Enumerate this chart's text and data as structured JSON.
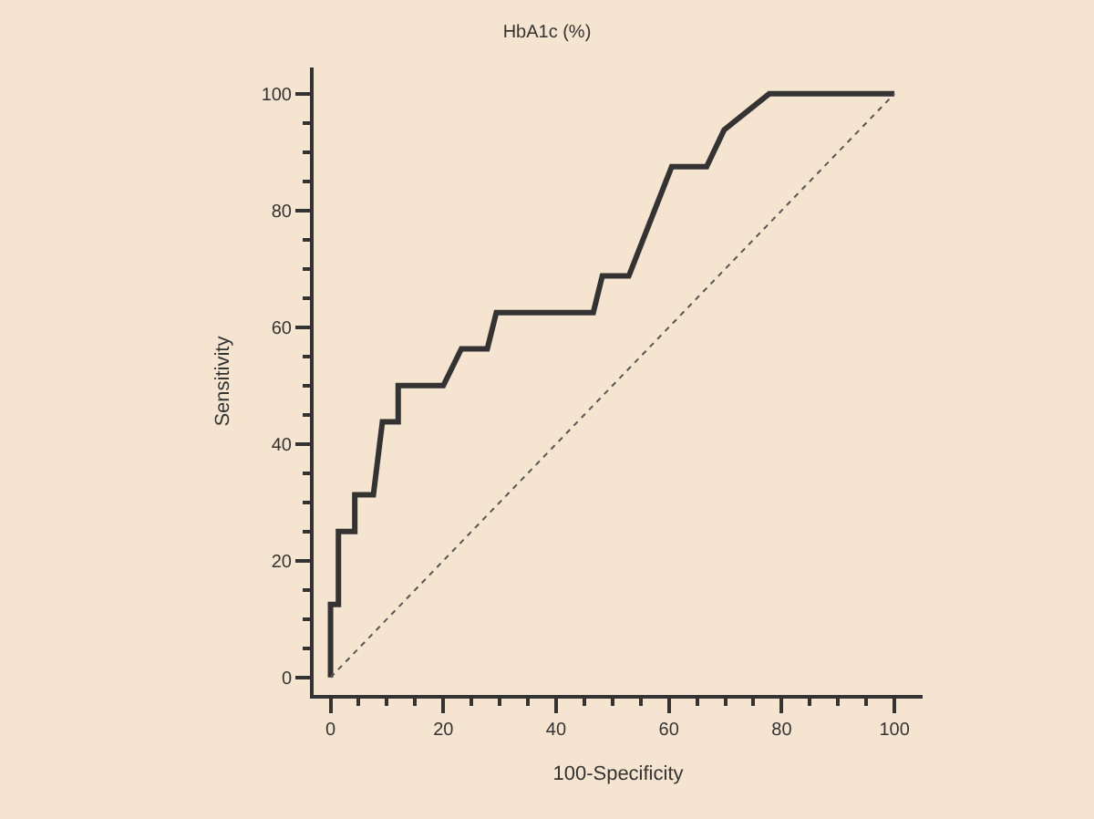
{
  "chart_data": {
    "type": "line",
    "title": "HbA1c (%)",
    "xlabel": "100-Specificity",
    "ylabel": "Sensitivity",
    "series": [
      {
        "color": "#333333",
        "line_style": "solid",
        "x": [
          0,
          0,
          1.4,
          1.4,
          4.3,
          4.3,
          7.6,
          9.2,
          12,
          12,
          20,
          23.2,
          27.8,
          29.4,
          46.6,
          48.2,
          52.9,
          60.5,
          66.7,
          69.8,
          77.8,
          100
        ],
        "values": [
          0,
          12.5,
          12.5,
          25,
          25,
          31.3,
          31.3,
          43.8,
          43.8,
          50,
          50,
          56.3,
          56.3,
          62.5,
          62.5,
          68.8,
          68.8,
          87.5,
          87.5,
          93.8,
          100,
          100
        ]
      },
      {
        "color": "#555555",
        "line_style": "dotted",
        "x": [
          0,
          100
        ],
        "values": [
          0,
          100
        ]
      }
    ],
    "xlim": [
      -3,
      105
    ],
    "ylim": [
      -3,
      104.5
    ],
    "xticks": [
      0,
      {
        "value": 5,
        "label": null
      },
      {
        "value": 10,
        "label": null
      },
      {
        "value": 15,
        "label": null
      },
      20,
      {
        "value": 25,
        "label": null
      },
      {
        "value": 30,
        "label": null
      },
      {
        "value": 35,
        "label": null
      },
      40,
      {
        "value": 45,
        "label": null
      },
      {
        "value": 50,
        "label": null
      },
      {
        "value": 55,
        "label": null
      },
      60,
      {
        "value": 65,
        "label": null
      },
      {
        "value": 70,
        "label": null
      },
      {
        "value": 75,
        "label": null
      },
      80,
      {
        "value": 85,
        "label": null
      },
      {
        "value": 90,
        "label": null
      },
      {
        "value": 95,
        "label": null
      },
      100
    ],
    "yticks": [
      0,
      {
        "value": 5,
        "label": null
      },
      {
        "value": 10,
        "label": null
      },
      {
        "value": 15,
        "label": null
      },
      20,
      {
        "value": 25,
        "label": null
      },
      {
        "value": 30,
        "label": null
      },
      {
        "value": 35,
        "label": null
      },
      40,
      {
        "value": 45,
        "label": null
      },
      {
        "value": 50,
        "label": null
      },
      {
        "value": 55,
        "label": null
      },
      60,
      {
        "value": 65,
        "label": null
      },
      {
        "value": 70,
        "label": null
      },
      {
        "value": 75,
        "label": null
      },
      80,
      {
        "value": 85,
        "label": null
      },
      {
        "value": 90,
        "label": null
      },
      {
        "value": 95,
        "label": null
      },
      100
    ],
    "grid": false,
    "marker": "none"
  }
}
